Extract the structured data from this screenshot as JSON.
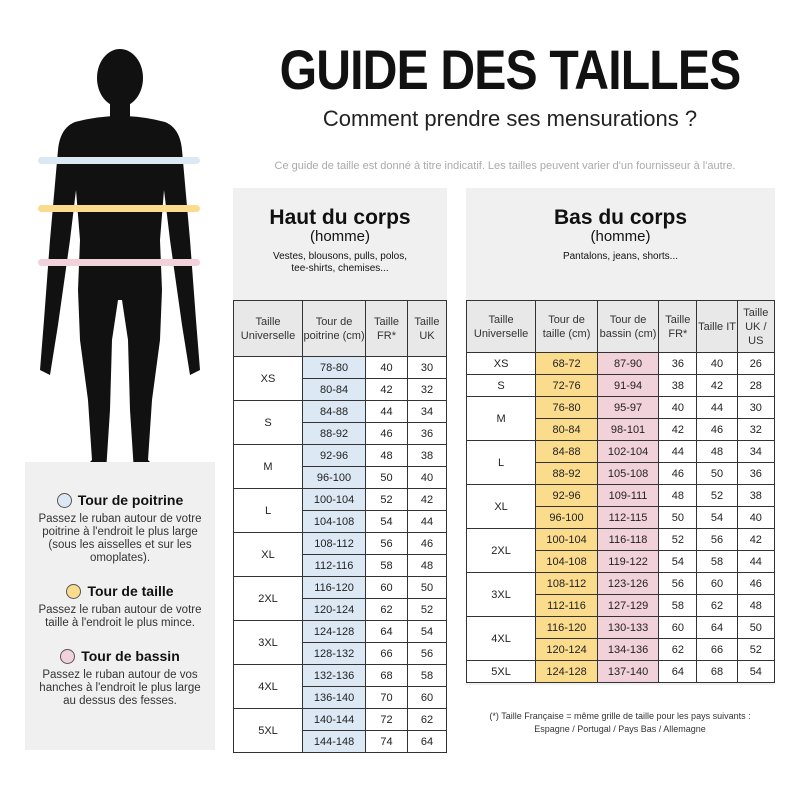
{
  "header": {
    "title": "GUIDE DES TAILLES",
    "subtitle": "Comment prendre ses mensurations ?",
    "disclaimer": "Ce guide de taille est donné à titre indicatif. Les tailles peuvent varier d'un fournisseur à l'autre."
  },
  "colors": {
    "chest": "#dce9f4",
    "waist": "#fbdc8d",
    "hip": "#f2d2da",
    "silhouette": "#111111"
  },
  "legend": [
    {
      "title": "Tour de poitrine",
      "text": "Passez le ruban autour de votre poitrine à l'endroit le plus large (sous les aisselles et sur les omoplates).",
      "color": "#dce9f4"
    },
    {
      "title": "Tour de taille",
      "text": "Passez le ruban autour de votre taille à l'endroit le plus mince.",
      "color": "#fbdc8d"
    },
    {
      "title": "Tour de bassin",
      "text": "Passez le ruban autour de vos hanches à l'endroit le plus large au dessus des fesses.",
      "color": "#f2d2da"
    }
  ],
  "top": {
    "heading": "Haut du corps",
    "sub": "(homme)",
    "desc": "Vestes, blousons, pulls, polos, tee-shirts, chemises...",
    "columns": [
      "Taille Universelle",
      "Tour de poitrine (cm)",
      "Taille FR*",
      "Taille UK"
    ],
    "groups": [
      {
        "size": "XS",
        "rows": [
          [
            "78-80",
            "40",
            "30"
          ],
          [
            "80-84",
            "42",
            "32"
          ]
        ]
      },
      {
        "size": "S",
        "rows": [
          [
            "84-88",
            "44",
            "34"
          ],
          [
            "88-92",
            "46",
            "36"
          ]
        ]
      },
      {
        "size": "M",
        "rows": [
          [
            "92-96",
            "48",
            "38"
          ],
          [
            "96-100",
            "50",
            "40"
          ]
        ]
      },
      {
        "size": "L",
        "rows": [
          [
            "100-104",
            "52",
            "42"
          ],
          [
            "104-108",
            "54",
            "44"
          ]
        ]
      },
      {
        "size": "XL",
        "rows": [
          [
            "108-112",
            "56",
            "46"
          ],
          [
            "112-116",
            "58",
            "48"
          ]
        ]
      },
      {
        "size": "2XL",
        "rows": [
          [
            "116-120",
            "60",
            "50"
          ],
          [
            "120-124",
            "62",
            "52"
          ]
        ]
      },
      {
        "size": "3XL",
        "rows": [
          [
            "124-128",
            "64",
            "54"
          ],
          [
            "128-132",
            "66",
            "56"
          ]
        ]
      },
      {
        "size": "4XL",
        "rows": [
          [
            "132-136",
            "68",
            "58"
          ],
          [
            "136-140",
            "70",
            "60"
          ]
        ]
      },
      {
        "size": "5XL",
        "rows": [
          [
            "140-144",
            "72",
            "62"
          ],
          [
            "144-148",
            "74",
            "64"
          ]
        ]
      }
    ]
  },
  "bottom": {
    "heading": "Bas du corps",
    "sub": "(homme)",
    "desc": "Pantalons, jeans, shorts...",
    "columns": [
      "Taille Universelle",
      "Tour de taille (cm)",
      "Tour de bassin (cm)",
      "Taille FR*",
      "Taille IT",
      "Taille UK / US"
    ],
    "groups": [
      {
        "size": "XS",
        "rows": [
          [
            "68-72",
            "87-90",
            "36",
            "40",
            "26"
          ]
        ]
      },
      {
        "size": "S",
        "rows": [
          [
            "72-76",
            "91-94",
            "38",
            "42",
            "28"
          ]
        ]
      },
      {
        "size": "M",
        "rows": [
          [
            "76-80",
            "95-97",
            "40",
            "44",
            "30"
          ],
          [
            "80-84",
            "98-101",
            "42",
            "46",
            "32"
          ]
        ]
      },
      {
        "size": "L",
        "rows": [
          [
            "84-88",
            "102-104",
            "44",
            "48",
            "34"
          ],
          [
            "88-92",
            "105-108",
            "46",
            "50",
            "36"
          ]
        ]
      },
      {
        "size": "XL",
        "rows": [
          [
            "92-96",
            "109-111",
            "48",
            "52",
            "38"
          ],
          [
            "96-100",
            "112-115",
            "50",
            "54",
            "40"
          ]
        ]
      },
      {
        "size": "2XL",
        "rows": [
          [
            "100-104",
            "116-118",
            "52",
            "56",
            "42"
          ],
          [
            "104-108",
            "119-122",
            "54",
            "58",
            "44"
          ]
        ]
      },
      {
        "size": "3XL",
        "rows": [
          [
            "108-112",
            "123-126",
            "56",
            "60",
            "46"
          ],
          [
            "112-116",
            "127-129",
            "58",
            "62",
            "48"
          ]
        ]
      },
      {
        "size": "4XL",
        "rows": [
          [
            "116-120",
            "130-133",
            "60",
            "64",
            "50"
          ],
          [
            "120-124",
            "134-136",
            "62",
            "66",
            "52"
          ]
        ]
      },
      {
        "size": "5XL",
        "rows": [
          [
            "124-128",
            "137-140",
            "64",
            "68",
            "54"
          ]
        ]
      }
    ]
  },
  "footnote": {
    "line1": "(*) Taille Française = même grille de taille pour les pays suivants :",
    "line2": "Espagne / Portugal / Pays Bas / Allemagne"
  }
}
